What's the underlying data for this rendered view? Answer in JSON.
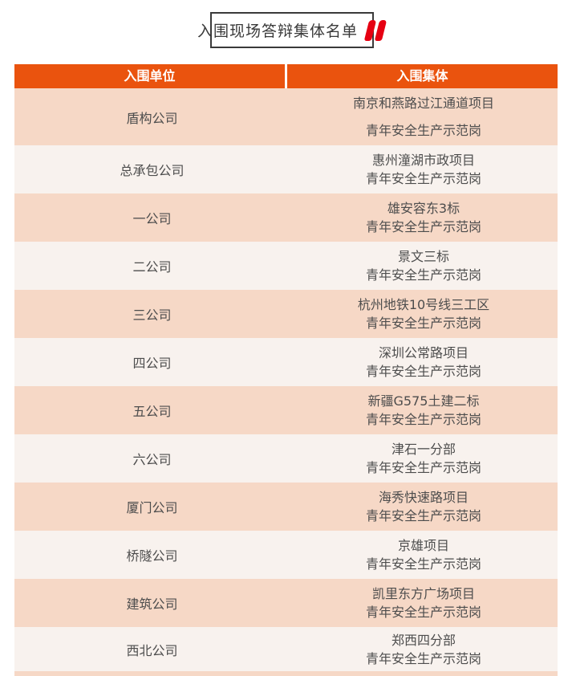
{
  "title": {
    "text": "入围现场答辩集体名单",
    "quote_icon": "red-double-quote"
  },
  "colors": {
    "header_orange": "#ea530e",
    "row_salmon": "#f6d8c6",
    "row_light": "#f8f2ee",
    "accent_red": "#e60012",
    "title_border": "#3a3a3a",
    "cell_text": "#4d4d4d"
  },
  "table": {
    "columns": [
      "入围单位",
      "入围集体"
    ],
    "rows": [
      {
        "unit": "盾构公司",
        "collective_line1": "南京和燕路过江通道项目",
        "collective_line2": "青年安全生产示范岗"
      },
      {
        "unit": "总承包公司",
        "collective_line1": "惠州潼湖市政项目",
        "collective_line2": "青年安全生产示范岗"
      },
      {
        "unit": "一公司",
        "collective_line1": "雄安容东3标",
        "collective_line2": "青年安全生产示范岗"
      },
      {
        "unit": "二公司",
        "collective_line1": "景文三标",
        "collective_line2": "青年安全生产示范岗"
      },
      {
        "unit": "三公司",
        "collective_line1": "杭州地铁10号线三工区",
        "collective_line2": "青年安全生产示范岗"
      },
      {
        "unit": "四公司",
        "collective_line1": "深圳公常路项目",
        "collective_line2": "青年安全生产示范岗"
      },
      {
        "unit": "五公司",
        "collective_line1": "新疆G575土建二标",
        "collective_line2": "青年安全生产示范岗"
      },
      {
        "unit": "六公司",
        "collective_line1": "津石一分部",
        "collective_line2": "青年安全生产示范岗"
      },
      {
        "unit": "厦门公司",
        "collective_line1": "海秀快速路项目",
        "collective_line2": "青年安全生产示范岗"
      },
      {
        "unit": "桥隧公司",
        "collective_line1": "京雄项目",
        "collective_line2": "青年安全生产示范岗"
      },
      {
        "unit": "建筑公司",
        "collective_line1": "凯里东方广场项目",
        "collective_line2": "青年安全生产示范岗"
      },
      {
        "unit": "西北公司",
        "collective_line1": "郑西四分部",
        "collective_line2": "青年安全生产示范岗"
      }
    ]
  }
}
